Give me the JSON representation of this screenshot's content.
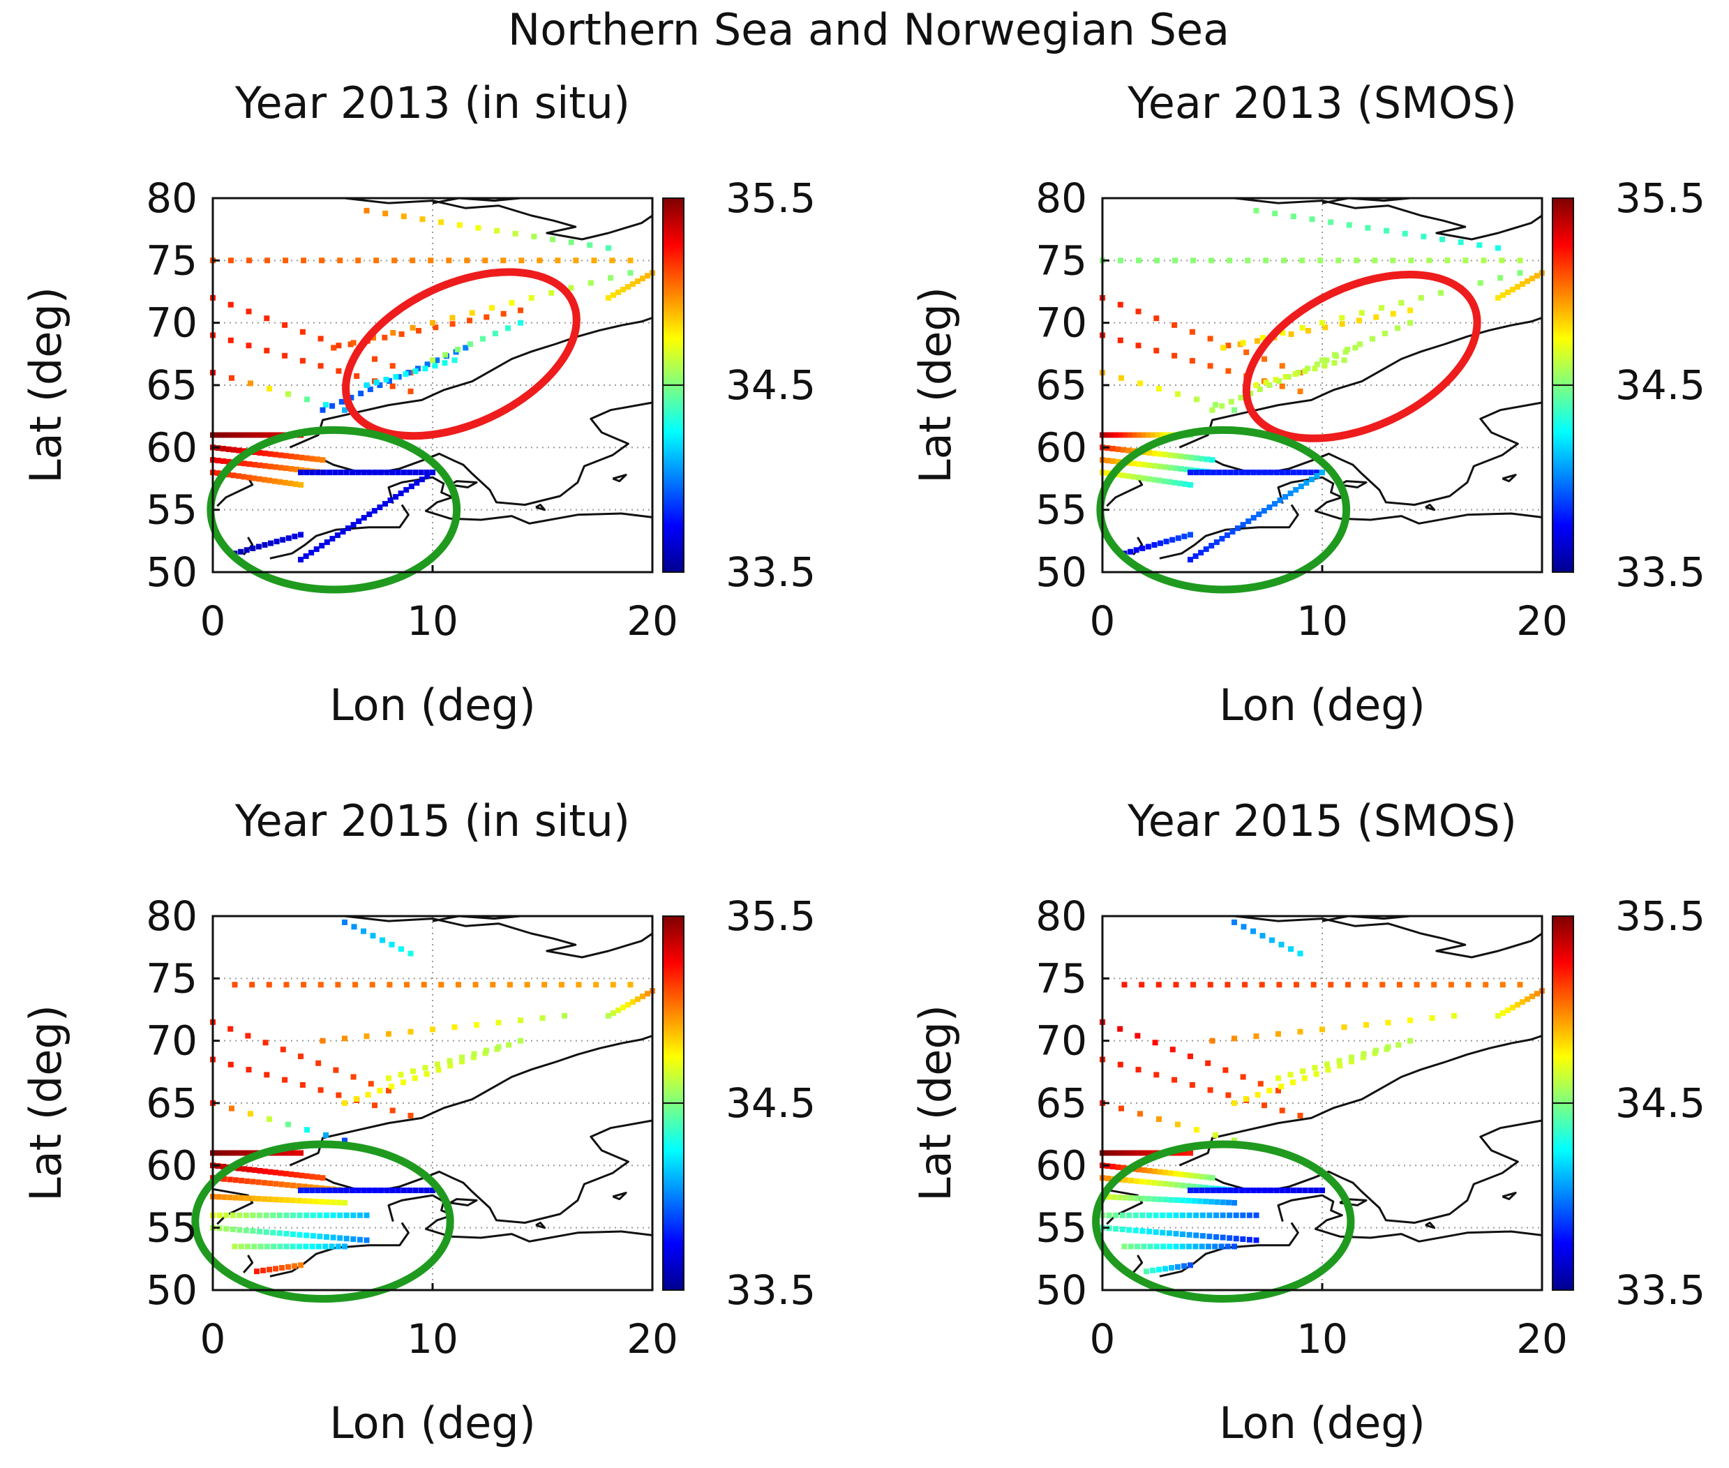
{
  "figure_title": "Northern Sea and Norwegian Sea",
  "colors": {
    "ellipse_red": "#ee1c1c",
    "ellipse_green": "#1f9a1f"
  },
  "chart_data": [
    {
      "type": "scatter",
      "id": "p2013_insitu",
      "title": "Year 2013 (in situ)",
      "xlabel": "Lon (deg)",
      "ylabel": "Lat (deg)",
      "xlim": [
        0,
        20
      ],
      "ylim": [
        50,
        80
      ],
      "xticks": [
        "0",
        "10",
        "20"
      ],
      "yticks": [
        "50",
        "55",
        "60",
        "65",
        "70",
        "75",
        "80"
      ],
      "colorbar": {
        "min": 33.5,
        "max": 35.5,
        "ticks": [
          "33.5",
          "34.5",
          "35.5"
        ],
        "colormap": "jet"
      },
      "grid": true,
      "ellipses": [
        {
          "color": "red",
          "cx": 11.3,
          "cy": 67.5,
          "rx": 5.6,
          "ry": 5.6,
          "angle": 25
        },
        {
          "color": "green",
          "cx": 5.5,
          "cy": 55.0,
          "rx": 5.6,
          "ry": 6.4,
          "angle": 0
        }
      ],
      "tracks": [
        {
          "from": [
            0,
            75
          ],
          "to": [
            19,
            75
          ],
          "n": 24,
          "v0": 35.1,
          "v1": 34.9
        },
        {
          "from": [
            0,
            72
          ],
          "to": [
            9,
            66
          ],
          "n": 12,
          "v0": 35.2,
          "v1": 35.1
        },
        {
          "from": [
            0,
            69
          ],
          "to": [
            9,
            64.5
          ],
          "n": 12,
          "v0": 35.2,
          "v1": 35.1
        },
        {
          "from": [
            0,
            66
          ],
          "to": [
            6,
            63
          ],
          "n": 8,
          "v0": 35.3,
          "v1": 34.1
        },
        {
          "from": [
            5.5,
            68
          ],
          "to": [
            14,
            71
          ],
          "n": 12,
          "v0": 35.1,
          "v1": 35.1
        },
        {
          "from": [
            5.5,
            68
          ],
          "to": [
            19,
            74
          ],
          "n": 16,
          "v0": 35.1,
          "v1": 34.5
        },
        {
          "from": [
            5,
            63
          ],
          "to": [
            11.5,
            68
          ],
          "n": 16,
          "v0": 33.9,
          "v1": 34.0
        },
        {
          "from": [
            7,
            65
          ],
          "to": [
            11,
            67
          ],
          "n": 10,
          "v0": 34.2,
          "v1": 34.3
        },
        {
          "from": [
            10,
            67
          ],
          "to": [
            14,
            70
          ],
          "n": 8,
          "v0": 34.6,
          "v1": 34.3
        },
        {
          "from": [
            0,
            61
          ],
          "to": [
            4,
            61
          ],
          "n": 20,
          "v0": 35.5,
          "v1": 35.3
        },
        {
          "from": [
            0,
            60
          ],
          "to": [
            5,
            59
          ],
          "n": 22,
          "v0": 35.4,
          "v1": 35.0
        },
        {
          "from": [
            0,
            59
          ],
          "to": [
            5,
            58
          ],
          "n": 22,
          "v0": 35.3,
          "v1": 34.9
        },
        {
          "from": [
            0,
            58
          ],
          "to": [
            4,
            57
          ],
          "n": 18,
          "v0": 35.2,
          "v1": 34.9
        },
        {
          "from": [
            4,
            58
          ],
          "to": [
            10,
            58
          ],
          "n": 24,
          "v0": 33.7,
          "v1": 33.7
        },
        {
          "from": [
            10,
            58
          ],
          "to": [
            4,
            51
          ],
          "n": 26,
          "v0": 33.7,
          "v1": 33.7
        },
        {
          "from": [
            1,
            51.5
          ],
          "to": [
            4,
            53
          ],
          "n": 12,
          "v0": 33.6,
          "v1": 33.7
        },
        {
          "from": [
            7,
            79
          ],
          "to": [
            18,
            76
          ],
          "n": 14,
          "v0": 35.0,
          "v1": 34.4
        },
        {
          "from": [
            18,
            72
          ],
          "to": [
            20,
            74
          ],
          "n": 10,
          "v0": 34.8,
          "v1": 34.9
        }
      ]
    },
    {
      "type": "scatter",
      "id": "p2013_smos",
      "title": "Year 2013 (SMOS)",
      "xlabel": "Lon (deg)",
      "ylabel": "Lat (deg)",
      "xlim": [
        0,
        20
      ],
      "ylim": [
        50,
        80
      ],
      "xticks": [
        "0",
        "10",
        "20"
      ],
      "yticks": [
        "50",
        "55",
        "60",
        "65",
        "70",
        "75",
        "80"
      ],
      "colorbar": {
        "min": 33.5,
        "max": 35.5,
        "ticks": [
          "33.5",
          "34.5",
          "35.5"
        ],
        "colormap": "jet"
      },
      "grid": true,
      "ellipses": [
        {
          "color": "red",
          "cx": 11.8,
          "cy": 67.3,
          "rx": 5.6,
          "ry": 5.6,
          "angle": 25
        },
        {
          "color": "green",
          "cx": 5.5,
          "cy": 55.0,
          "rx": 5.6,
          "ry": 6.4,
          "angle": 0
        }
      ],
      "tracks": [
        {
          "from": [
            0,
            75
          ],
          "to": [
            19,
            75
          ],
          "n": 24,
          "v0": 34.5,
          "v1": 34.6
        },
        {
          "from": [
            0,
            72
          ],
          "to": [
            9,
            66
          ],
          "n": 12,
          "v0": 35.2,
          "v1": 35.0
        },
        {
          "from": [
            0,
            69
          ],
          "to": [
            9,
            64.5
          ],
          "n": 12,
          "v0": 35.2,
          "v1": 35.0
        },
        {
          "from": [
            0,
            66
          ],
          "to": [
            6,
            63
          ],
          "n": 8,
          "v0": 34.9,
          "v1": 34.5
        },
        {
          "from": [
            5.5,
            68
          ],
          "to": [
            14,
            71
          ],
          "n": 12,
          "v0": 34.9,
          "v1": 34.8
        },
        {
          "from": [
            5.5,
            68
          ],
          "to": [
            19,
            74
          ],
          "n": 16,
          "v0": 34.8,
          "v1": 34.5
        },
        {
          "from": [
            5,
            63
          ],
          "to": [
            11.5,
            68
          ],
          "n": 16,
          "v0": 34.6,
          "v1": 34.6
        },
        {
          "from": [
            7,
            65
          ],
          "to": [
            11,
            67
          ],
          "n": 10,
          "v0": 34.7,
          "v1": 34.6
        },
        {
          "from": [
            10,
            67
          ],
          "to": [
            14,
            70
          ],
          "n": 8,
          "v0": 34.6,
          "v1": 34.6
        },
        {
          "from": [
            0,
            61
          ],
          "to": [
            4,
            61
          ],
          "n": 20,
          "v0": 35.4,
          "v1": 34.5
        },
        {
          "from": [
            0,
            60
          ],
          "to": [
            5,
            59
          ],
          "n": 22,
          "v0": 35.2,
          "v1": 34.3
        },
        {
          "from": [
            0,
            59
          ],
          "to": [
            5,
            58
          ],
          "n": 22,
          "v0": 35.0,
          "v1": 34.2
        },
        {
          "from": [
            0,
            58
          ],
          "to": [
            4,
            57
          ],
          "n": 18,
          "v0": 34.8,
          "v1": 34.3
        },
        {
          "from": [
            4,
            58
          ],
          "to": [
            10,
            58
          ],
          "n": 24,
          "v0": 33.8,
          "v1": 33.8
        },
        {
          "from": [
            10,
            58
          ],
          "to": [
            4,
            51
          ],
          "n": 26,
          "v0": 34.1,
          "v1": 33.8
        },
        {
          "from": [
            1,
            51.5
          ],
          "to": [
            4,
            53
          ],
          "n": 12,
          "v0": 33.7,
          "v1": 33.9
        },
        {
          "from": [
            7,
            79
          ],
          "to": [
            18,
            76
          ],
          "n": 14,
          "v0": 34.5,
          "v1": 34.3
        },
        {
          "from": [
            18,
            72
          ],
          "to": [
            20,
            74
          ],
          "n": 10,
          "v0": 34.8,
          "v1": 34.9
        }
      ]
    },
    {
      "type": "scatter",
      "id": "p2015_insitu",
      "title": "Year 2015 (in situ)",
      "xlabel": "Lon (deg)",
      "ylabel": "Lat (deg)",
      "xlim": [
        0,
        20
      ],
      "ylim": [
        50,
        80
      ],
      "xticks": [
        "0",
        "10",
        "20"
      ],
      "yticks": [
        "50",
        "55",
        "60",
        "65",
        "70",
        "75",
        "80"
      ],
      "colorbar": {
        "min": 33.5,
        "max": 35.5,
        "ticks": [
          "33.5",
          "34.5",
          "35.5"
        ],
        "colormap": "jet"
      },
      "grid": true,
      "ellipses": [
        {
          "color": "green",
          "cx": 5.0,
          "cy": 55.5,
          "rx": 5.8,
          "ry": 6.2,
          "angle": 0
        }
      ],
      "tracks": [
        {
          "from": [
            1,
            74.5
          ],
          "to": [
            19,
            74.5
          ],
          "n": 24,
          "v0": 35.1,
          "v1": 34.9
        },
        {
          "from": [
            0,
            71.5
          ],
          "to": [
            8,
            66
          ],
          "n": 11,
          "v0": 35.2,
          "v1": 35.1
        },
        {
          "from": [
            0,
            68.5
          ],
          "to": [
            9,
            64
          ],
          "n": 12,
          "v0": 35.2,
          "v1": 35.1
        },
        {
          "from": [
            5,
            70
          ],
          "to": [
            16,
            72
          ],
          "n": 12,
          "v0": 35.0,
          "v1": 34.6
        },
        {
          "from": [
            6,
            65
          ],
          "to": [
            14,
            70
          ],
          "n": 16,
          "v0": 34.8,
          "v1": 34.6
        },
        {
          "from": [
            8,
            67
          ],
          "to": [
            13,
            69.5
          ],
          "n": 10,
          "v0": 34.7,
          "v1": 34.6
        },
        {
          "from": [
            0,
            65
          ],
          "to": [
            6,
            62
          ],
          "n": 8,
          "v0": 35.2,
          "v1": 33.9
        },
        {
          "from": [
            0,
            61
          ],
          "to": [
            4,
            61
          ],
          "n": 18,
          "v0": 35.5,
          "v1": 35.3
        },
        {
          "from": [
            0,
            60
          ],
          "to": [
            5,
            59
          ],
          "n": 22,
          "v0": 35.4,
          "v1": 35.1
        },
        {
          "from": [
            0,
            59
          ],
          "to": [
            6,
            58
          ],
          "n": 24,
          "v0": 35.2,
          "v1": 34.9
        },
        {
          "from": [
            0,
            57.5
          ],
          "to": [
            6,
            57
          ],
          "n": 24,
          "v0": 35.0,
          "v1": 34.7
        },
        {
          "from": [
            0,
            56
          ],
          "to": [
            7,
            56
          ],
          "n": 24,
          "v0": 34.7,
          "v1": 34.1
        },
        {
          "from": [
            0,
            55
          ],
          "to": [
            7,
            54
          ],
          "n": 24,
          "v0": 34.6,
          "v1": 34.0
        },
        {
          "from": [
            1,
            53.5
          ],
          "to": [
            6,
            53.5
          ],
          "n": 18,
          "v0": 34.6,
          "v1": 34.1
        },
        {
          "from": [
            4,
            58
          ],
          "to": [
            10,
            58
          ],
          "n": 24,
          "v0": 33.8,
          "v1": 33.7
        },
        {
          "from": [
            2,
            51.5
          ],
          "to": [
            4,
            52
          ],
          "n": 8,
          "v0": 35.2,
          "v1": 35.0
        },
        {
          "from": [
            6,
            79.5
          ],
          "to": [
            9,
            77
          ],
          "n": 8,
          "v0": 34.0,
          "v1": 34.3
        },
        {
          "from": [
            18,
            72
          ],
          "to": [
            20,
            74
          ],
          "n": 10,
          "v0": 34.6,
          "v1": 35.0
        }
      ]
    },
    {
      "type": "scatter",
      "id": "p2015_smos",
      "title": "Year 2015 (SMOS)",
      "xlabel": "Lon (deg)",
      "ylabel": "Lat (deg)",
      "xlim": [
        0,
        20
      ],
      "ylim": [
        50,
        80
      ],
      "xticks": [
        "0",
        "10",
        "20"
      ],
      "yticks": [
        "50",
        "55",
        "60",
        "65",
        "70",
        "75",
        "80"
      ],
      "colorbar": {
        "min": 33.5,
        "max": 35.5,
        "ticks": [
          "33.5",
          "34.5",
          "35.5"
        ],
        "colormap": "jet"
      },
      "grid": true,
      "ellipses": [
        {
          "color": "green",
          "cx": 5.5,
          "cy": 55.5,
          "rx": 5.8,
          "ry": 6.2,
          "angle": 0
        }
      ],
      "tracks": [
        {
          "from": [
            1,
            74.5
          ],
          "to": [
            19,
            74.5
          ],
          "n": 24,
          "v0": 35.2,
          "v1": 35.0
        },
        {
          "from": [
            0,
            71.5
          ],
          "to": [
            8,
            66
          ],
          "n": 11,
          "v0": 35.3,
          "v1": 35.1
        },
        {
          "from": [
            0,
            68.5
          ],
          "to": [
            9,
            64
          ],
          "n": 12,
          "v0": 35.2,
          "v1": 35.1
        },
        {
          "from": [
            5,
            70
          ],
          "to": [
            16,
            72
          ],
          "n": 12,
          "v0": 35.0,
          "v1": 34.7
        },
        {
          "from": [
            6,
            65
          ],
          "to": [
            14,
            70
          ],
          "n": 16,
          "v0": 34.8,
          "v1": 34.6
        },
        {
          "from": [
            8,
            67
          ],
          "to": [
            13,
            69.5
          ],
          "n": 10,
          "v0": 34.7,
          "v1": 34.6
        },
        {
          "from": [
            0,
            65
          ],
          "to": [
            6,
            62
          ],
          "n": 8,
          "v0": 35.2,
          "v1": 34.6
        },
        {
          "from": [
            0,
            61
          ],
          "to": [
            4,
            61
          ],
          "n": 18,
          "v0": 35.5,
          "v1": 35.2
        },
        {
          "from": [
            0,
            60
          ],
          "to": [
            5,
            59
          ],
          "n": 22,
          "v0": 35.3,
          "v1": 34.5
        },
        {
          "from": [
            0,
            59
          ],
          "to": [
            6,
            58
          ],
          "n": 24,
          "v0": 35.0,
          "v1": 34.2
        },
        {
          "from": [
            0,
            57.5
          ],
          "to": [
            6,
            57
          ],
          "n": 24,
          "v0": 34.7,
          "v1": 34.0
        },
        {
          "from": [
            0,
            56
          ],
          "to": [
            7,
            56
          ],
          "n": 24,
          "v0": 34.5,
          "v1": 33.9
        },
        {
          "from": [
            0,
            55
          ],
          "to": [
            7,
            54
          ],
          "n": 24,
          "v0": 34.4,
          "v1": 33.8
        },
        {
          "from": [
            1,
            53.5
          ],
          "to": [
            6,
            53.5
          ],
          "n": 18,
          "v0": 34.5,
          "v1": 33.9
        },
        {
          "from": [
            4,
            58
          ],
          "to": [
            10,
            58
          ],
          "n": 24,
          "v0": 33.8,
          "v1": 33.7
        },
        {
          "from": [
            2,
            51.5
          ],
          "to": [
            4,
            52
          ],
          "n": 8,
          "v0": 34.4,
          "v1": 33.9
        },
        {
          "from": [
            6,
            79.5
          ],
          "to": [
            9,
            77
          ],
          "n": 8,
          "v0": 34.0,
          "v1": 34.2
        },
        {
          "from": [
            18,
            72
          ],
          "to": [
            20,
            74
          ],
          "n": 10,
          "v0": 34.7,
          "v1": 35.0
        }
      ]
    }
  ]
}
